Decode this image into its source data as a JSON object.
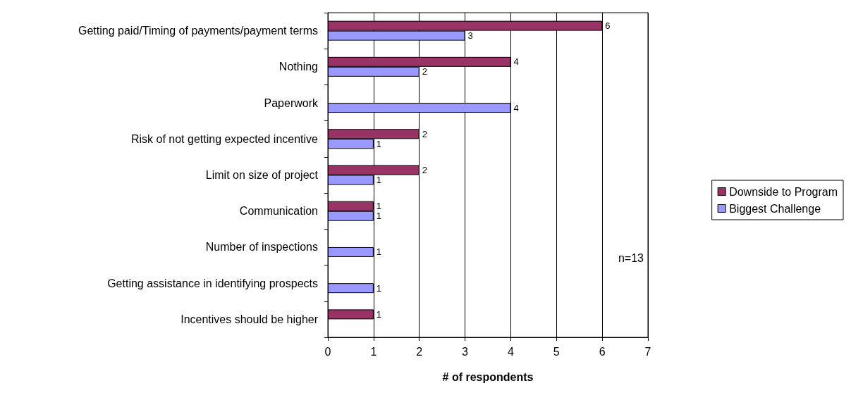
{
  "chart_data": {
    "type": "bar",
    "orientation": "horizontal",
    "xlabel": "# of respondents",
    "categories": [
      "Getting paid/Timing of payments/payment terms",
      "Nothing",
      "Paperwork",
      "Risk of not getting expected incentive",
      "Limit on size of project",
      "Communication",
      "Number of inspections",
      "Getting assistance in identifying prospects",
      "Incentives should be higher"
    ],
    "series": [
      {
        "name": "Downside to Program",
        "color": "#993366",
        "values": [
          6,
          4,
          null,
          2,
          2,
          1,
          null,
          null,
          1
        ]
      },
      {
        "name": "Biggest Challenge",
        "color": "#9999ff",
        "values": [
          3,
          2,
          4,
          1,
          1,
          1,
          1,
          1,
          null
        ]
      }
    ],
    "xlim": [
      0,
      7
    ],
    "xticks": [
      0,
      1,
      2,
      3,
      4,
      5,
      6,
      7
    ],
    "grid": "x",
    "legend": "right",
    "data_labels": true,
    "annotations": [
      "n=13"
    ]
  }
}
